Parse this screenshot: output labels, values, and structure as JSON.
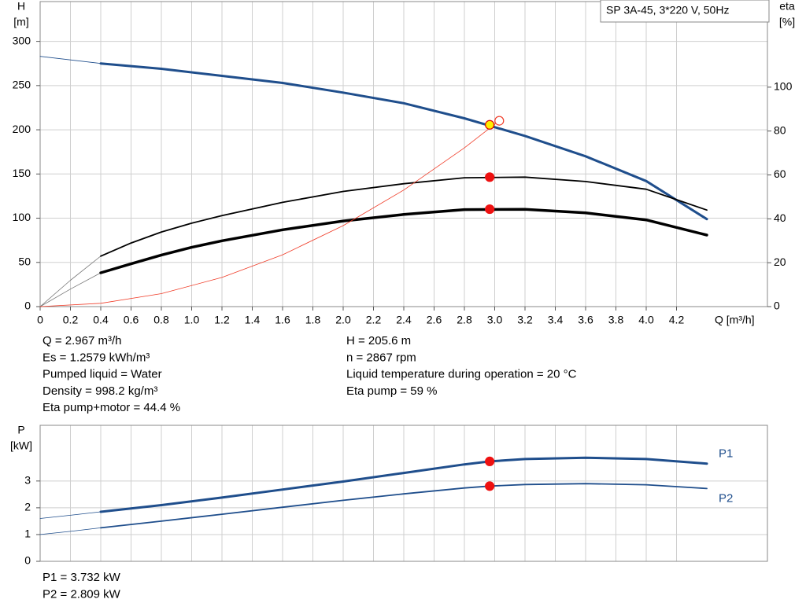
{
  "chart_data": [
    {
      "type": "line",
      "title": "SP 3A-45, 3*220 V, 50Hz",
      "ylabel": "H",
      "yunit": "[m]",
      "y2label": "eta",
      "y2unit": "[%]",
      "xlabel": "Q [m³/h]",
      "xlim": [
        0,
        4.8
      ],
      "ylim": [
        0,
        345
      ],
      "y2lim": [
        0,
        139
      ],
      "xticks": [
        0,
        0.2,
        0.4,
        0.6,
        0.8,
        {
          "value": 1,
          "label": "1.0"
        },
        1.2,
        1.4,
        1.6,
        1.8,
        {
          "value": 2,
          "label": "2.0"
        },
        2.2,
        2.4,
        2.6,
        2.8,
        {
          "value": 3,
          "label": "3.0"
        },
        3.2,
        3.4,
        3.6,
        3.8,
        {
          "value": 4,
          "label": "4.0"
        },
        4.2
      ],
      "xtick_labels": true,
      "yticks": [
        0,
        50,
        100,
        150,
        200,
        250,
        300
      ],
      "y2ticks": [
        0,
        20,
        40,
        60,
        80,
        100
      ],
      "grid": true,
      "series": [
        {
          "color": "#1f4e8c",
          "width": 0.8,
          "x": [
            0,
            0.2,
            0.4
          ],
          "values": [
            283,
            279,
            275
          ]
        },
        {
          "color": "#1f4e8c",
          "width": 3,
          "x": [
            0.4,
            0.8,
            1.2,
            1.6,
            2.0,
            2.4,
            2.8,
            3.2,
            3.6,
            4.0,
            4.4
          ],
          "values": [
            275,
            269,
            261,
            253,
            242,
            230,
            213,
            193,
            170,
            142,
            99
          ]
        },
        {
          "color": "#777777",
          "width": 0.8,
          "axis": "y2",
          "x": [
            0,
            0.2,
            0.4
          ],
          "values": [
            0,
            12,
            23
          ]
        },
        {
          "color": "#000000",
          "width": 1.8,
          "axis": "y2",
          "x": [
            0.4,
            0.6,
            0.8,
            1.0,
            1.2,
            1.6,
            2.0,
            2.4,
            2.8,
            3.2,
            3.6,
            4.0,
            4.4
          ],
          "values": [
            23,
            29,
            34,
            38,
            41.5,
            47.5,
            52.5,
            56,
            58.7,
            59,
            57,
            53.5,
            44
          ]
        },
        {
          "color": "#777777",
          "width": 0.8,
          "axis": "y2",
          "x": [
            0,
            0.2,
            0.4
          ],
          "values": [
            0,
            8,
            15.4
          ]
        },
        {
          "color": "#000000",
          "width": 3.5,
          "axis": "y2",
          "x": [
            0.4,
            0.6,
            0.8,
            1.0,
            1.2,
            1.6,
            2.0,
            2.4,
            2.8,
            3.2,
            3.6,
            4.0,
            4.4
          ],
          "values": [
            15.4,
            19.5,
            23.5,
            27,
            30,
            35,
            39,
            42,
            44.2,
            44.3,
            42.7,
            39.5,
            32.6
          ]
        },
        {
          "color": "#f03c28",
          "width": 0.8,
          "x": [
            0,
            0.4,
            0.8,
            1.2,
            1.6,
            2.0,
            2.4,
            2.8,
            3.03
          ],
          "values": [
            0,
            3.7,
            14.7,
            33,
            58.6,
            91.6,
            131.9,
            179.5,
            210.2
          ]
        }
      ],
      "markers": [
        {
          "x": 3.03,
          "value": 210.2,
          "color": "#ffffff",
          "stroke": "#f03c28"
        },
        {
          "x": 2.967,
          "value": 205.6,
          "color": "#ffee00",
          "stroke": "#dd0000"
        },
        {
          "x": 2.967,
          "value": 59,
          "axis": "y2",
          "color": "#ee1111",
          "stroke": "#ee1111"
        },
        {
          "x": 2.967,
          "value": 44.4,
          "axis": "y2",
          "color": "#ee1111",
          "stroke": "#ee1111"
        }
      ],
      "annotations": [
        [
          "Q = 2.967 m³/h",
          "Es = 1.2579 kWh/m³",
          "Pumped liquid = Water",
          "Density = 998.2 kg/m³",
          "Eta pump+motor = 44.4 %"
        ],
        [
          "H = 205.6 m",
          "n = 2867 rpm",
          "Liquid temperature during operation = 20 °C",
          "Eta pump = 59 %"
        ]
      ]
    },
    {
      "type": "line",
      "ylabel": "P",
      "yunit": "[kW]",
      "xlim": [
        0,
        4.8
      ],
      "ylim": [
        0,
        5.08
      ],
      "xticks": [
        0,
        0.2,
        0.4,
        0.6,
        0.8,
        1,
        1.2,
        1.4,
        1.6,
        1.8,
        2,
        2.2,
        2.4,
        2.6,
        2.8,
        3,
        3.2,
        3.4,
        3.6,
        3.8,
        4,
        4.2
      ],
      "xtick_labels": false,
      "yticks": [
        0,
        1,
        2,
        3
      ],
      "grid": true,
      "series": [
        {
          "color": "#1f4e8c",
          "width": 0.8,
          "x": [
            0,
            0.2,
            0.4
          ],
          "values": [
            1.6,
            1.72,
            1.85
          ]
        },
        {
          "name": "P1",
          "color": "#1f4e8c",
          "width": 3,
          "x": [
            0.4,
            0.8,
            1.2,
            1.6,
            2.0,
            2.4,
            2.8,
            2.967,
            3.2,
            3.6,
            4.0,
            4.4
          ],
          "values": [
            1.85,
            2.1,
            2.38,
            2.68,
            2.98,
            3.3,
            3.62,
            3.732,
            3.82,
            3.87,
            3.82,
            3.65
          ]
        },
        {
          "color": "#1f4e8c",
          "width": 0.8,
          "x": [
            0,
            0.2,
            0.4
          ],
          "values": [
            1.0,
            1.12,
            1.25
          ]
        },
        {
          "name": "P2",
          "color": "#1f4e8c",
          "width": 1.8,
          "x": [
            0.4,
            0.8,
            1.2,
            1.6,
            2.0,
            2.4,
            2.8,
            2.967,
            3.2,
            3.6,
            4.0,
            4.4
          ],
          "values": [
            1.25,
            1.5,
            1.76,
            2.02,
            2.28,
            2.52,
            2.74,
            2.809,
            2.87,
            2.9,
            2.86,
            2.72
          ]
        }
      ],
      "markers": [
        {
          "x": 2.967,
          "value": 3.732,
          "color": "#ee1111",
          "stroke": "#ee1111"
        },
        {
          "x": 2.967,
          "value": 2.809,
          "color": "#ee1111",
          "stroke": "#ee1111"
        }
      ],
      "annotations": [
        [
          "P1 = 3.732 kW",
          "P2 = 2.809 kW"
        ]
      ]
    }
  ]
}
